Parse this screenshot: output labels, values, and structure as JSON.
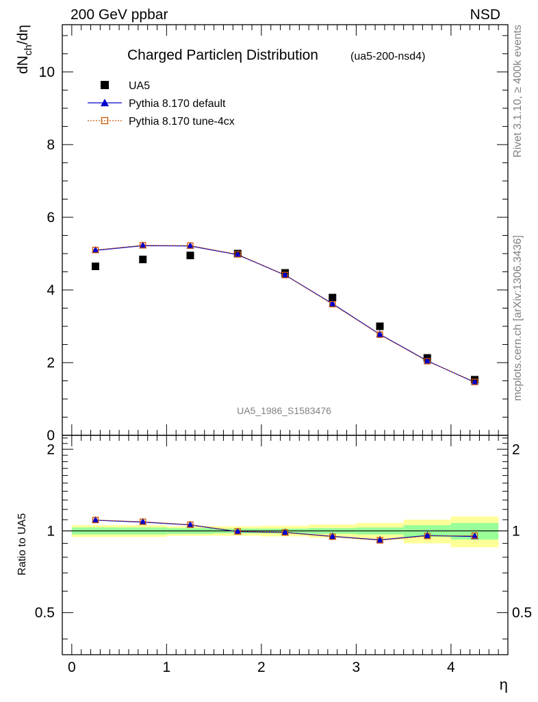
{
  "header": {
    "left": "200 GeV ppbar",
    "right": "NSD"
  },
  "side_text": {
    "rivet": "Rivet 3.1.10, ≥ 400k events",
    "mcplots": "mcplots.cern.ch [arXiv:1306.3436]"
  },
  "colors": {
    "data": "#000000",
    "default": "#0000cc",
    "tune": "#cc5500",
    "band_inner": "#99ff99",
    "band_outer": "#ffff99"
  },
  "chart_data": [
    {
      "type": "scatter",
      "title": "Charged Particleη Distribution",
      "subtitle": "(ua5-200-nsd4)",
      "ylabel": "dN",
      "ylabel_sub": "ch",
      "ylabel_tail": "/dη",
      "xlim": [
        -0.1,
        4.6
      ],
      "ylim": [
        0,
        11.3
      ],
      "y_ticks": [
        "0",
        "2",
        "4",
        "6",
        "8",
        "10"
      ],
      "watermark": "UA5_1986_S1583476",
      "legend": [
        "UA5",
        "Pythia 8.170 default",
        "Pythia 8.170 tune-4cx"
      ],
      "legend_position": "top-left",
      "x": [
        0.25,
        0.75,
        1.25,
        1.75,
        2.25,
        2.75,
        3.25,
        3.75,
        4.25
      ],
      "series": [
        {
          "name": "UA5",
          "values": [
            4.65,
            4.84,
            4.95,
            5.0,
            4.47,
            3.79,
            3.0,
            2.13,
            1.53
          ]
        },
        {
          "name": "Pythia 8.170 default",
          "values": [
            5.09,
            5.22,
            5.21,
            4.97,
            4.41,
            3.62,
            2.78,
            2.05,
            1.46
          ]
        },
        {
          "name": "Pythia 8.170 tune-4cx",
          "values": [
            5.1,
            5.23,
            5.22,
            4.98,
            4.41,
            3.61,
            2.77,
            2.04,
            1.47
          ]
        }
      ]
    },
    {
      "type": "line",
      "ylabel": "Ratio to UA5",
      "xlabel": "η",
      "xlim": [
        -0.1,
        4.6
      ],
      "ylim": [
        0.35,
        2.25
      ],
      "x_ticks": [
        "0",
        "1",
        "2",
        "3",
        "4"
      ],
      "y_ticks": [
        "0.5",
        "1",
        "2"
      ],
      "x": [
        0.25,
        0.75,
        1.25,
        1.75,
        2.25,
        2.75,
        3.25,
        3.75,
        4.25
      ],
      "band_edges": [
        0,
        0.5,
        1.0,
        1.5,
        2.0,
        2.5,
        3.0,
        3.5,
        4.0,
        4.5
      ],
      "band_inner": [
        0.03,
        0.03,
        0.025,
        0.02,
        0.02,
        0.025,
        0.03,
        0.05,
        0.07
      ],
      "band_outer": [
        0.05,
        0.05,
        0.04,
        0.04,
        0.045,
        0.055,
        0.07,
        0.1,
        0.13
      ],
      "series": [
        {
          "name": "Pythia 8.170 default",
          "values": [
            1.095,
            1.078,
            1.052,
            0.994,
            0.987,
            0.955,
            0.927,
            0.962,
            0.954
          ]
        },
        {
          "name": "Pythia 8.170 tune-4cx",
          "values": [
            1.097,
            1.081,
            1.055,
            0.996,
            0.987,
            0.952,
            0.923,
            0.958,
            0.961
          ]
        }
      ]
    }
  ]
}
